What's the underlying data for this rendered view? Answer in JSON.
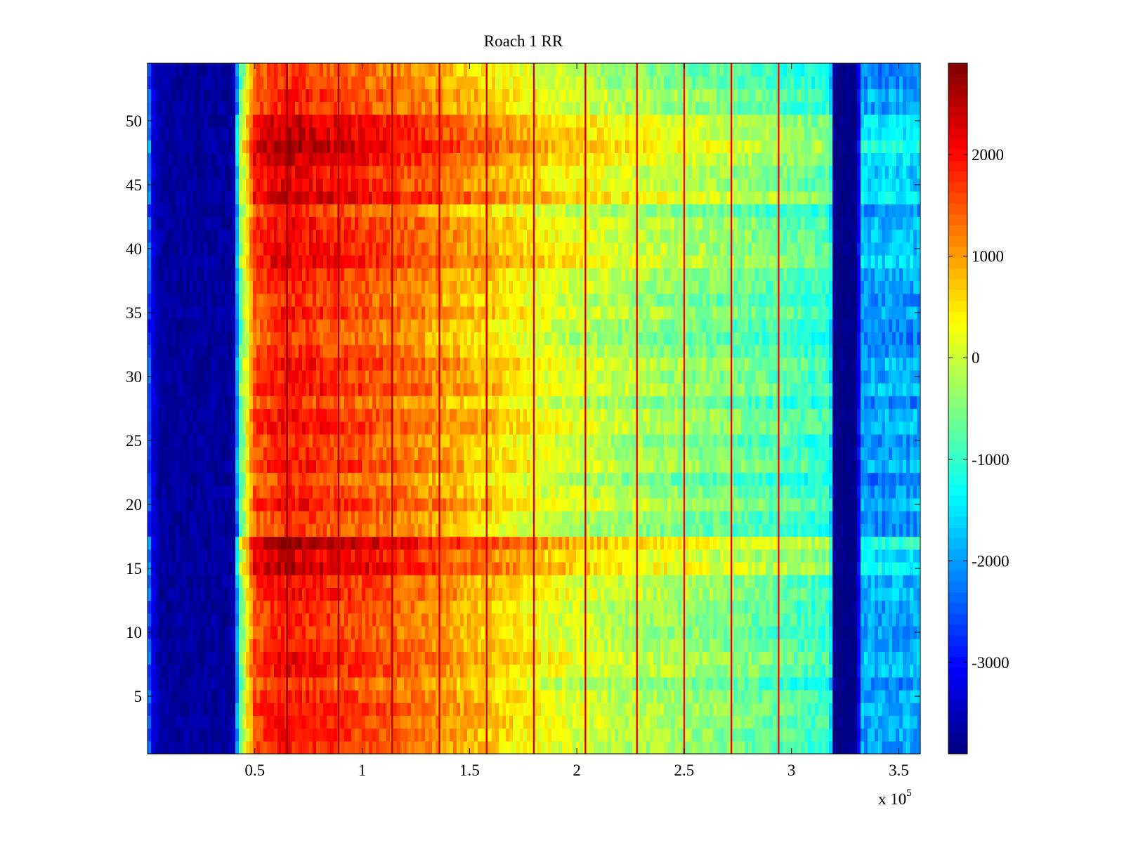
{
  "chart_data": {
    "type": "heatmap",
    "title": "Roach 1 RR",
    "xlabel": "",
    "ylabel": "",
    "x_multiplier_label": {
      "base": "x 10",
      "exponent": "5"
    },
    "xlim": [
      0,
      360000
    ],
    "ylim": [
      0.5,
      54.5
    ],
    "x_ticks": [
      {
        "value": 50000,
        "label": "0.5"
      },
      {
        "value": 100000,
        "label": "1"
      },
      {
        "value": 150000,
        "label": "1.5"
      },
      {
        "value": 200000,
        "label": "2"
      },
      {
        "value": 250000,
        "label": "2.5"
      },
      {
        "value": 300000,
        "label": "3"
      },
      {
        "value": 350000,
        "label": "3.5"
      }
    ],
    "y_ticks": [
      {
        "value": 5,
        "label": "5"
      },
      {
        "value": 10,
        "label": "10"
      },
      {
        "value": 15,
        "label": "15"
      },
      {
        "value": 20,
        "label": "20"
      },
      {
        "value": 25,
        "label": "25"
      },
      {
        "value": 30,
        "label": "30"
      },
      {
        "value": 35,
        "label": "35"
      },
      {
        "value": 40,
        "label": "40"
      },
      {
        "value": 45,
        "label": "45"
      },
      {
        "value": 50,
        "label": "50"
      }
    ],
    "colorbar": {
      "colormap": "jet",
      "clim": [
        -3900,
        2900
      ],
      "ticks": [
        {
          "value": 2000,
          "label": "2000"
        },
        {
          "value": 1000,
          "label": "1000"
        },
        {
          "value": 0,
          "label": "0"
        },
        {
          "value": -1000,
          "label": "-1000"
        },
        {
          "value": -2000,
          "label": "-2000"
        },
        {
          "value": -3000,
          "label": "-3000"
        }
      ]
    },
    "rows": 54,
    "column_profile": {
      "x": [
        0,
        2000,
        6000,
        40000,
        43000,
        50000,
        65000,
        80000,
        100000,
        130000,
        160000,
        190000,
        220000,
        260000,
        300000,
        318000,
        320000,
        330000,
        333000,
        360000
      ],
      "value": [
        -2200,
        -3200,
        -3700,
        -3700,
        -900,
        1500,
        1900,
        1700,
        1500,
        1100,
        600,
        100,
        -200,
        -500,
        -900,
        -1100,
        -3900,
        -3900,
        -2000,
        -2000
      ]
    },
    "row_bands": [
      {
        "y_from": 44,
        "y_to": 50,
        "offset": 550
      },
      {
        "y_from": 15,
        "y_to": 17,
        "offset": 650
      },
      {
        "y_from": 38,
        "y_to": 42,
        "offset": 250
      },
      {
        "y_from": 1,
        "y_to": 1,
        "offset": 300
      }
    ],
    "vertical_lines": [
      {
        "x": 65000,
        "value": 2700
      },
      {
        "x": 89000,
        "value": 2600
      },
      {
        "x": 114000,
        "value": 2500
      },
      {
        "x": 136000,
        "value": 2300
      },
      {
        "x": 158000,
        "value": 2300
      },
      {
        "x": 180000,
        "value": 2400
      },
      {
        "x": 204000,
        "value": 2300
      },
      {
        "x": 228000,
        "value": 2100
      },
      {
        "x": 250000,
        "value": 2000
      },
      {
        "x": 272000,
        "value": 2100
      },
      {
        "x": 294000,
        "value": 2000
      }
    ]
  }
}
